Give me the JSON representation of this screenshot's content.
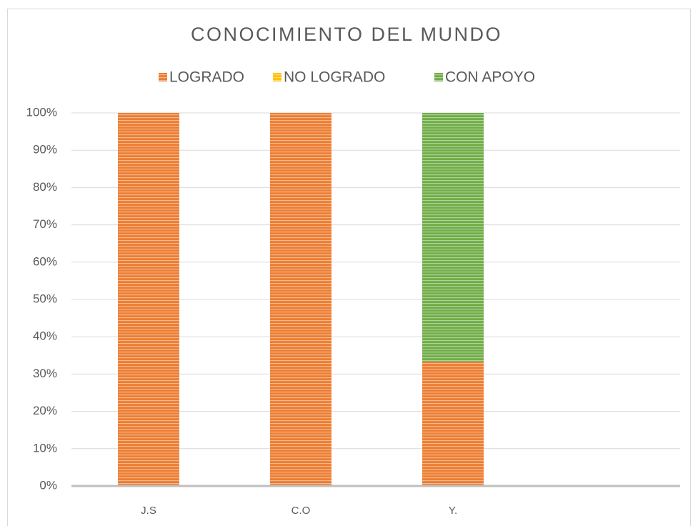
{
  "chart_data": {
    "type": "stacked_bar",
    "title": "CONOCIMIENTO DEL MUNDO",
    "categories": [
      "J.S",
      "C.O",
      "Y.",
      null
    ],
    "series": [
      {
        "name": "LOGRADO",
        "color": "#ed7d31",
        "values": [
          100,
          100,
          33.3,
          null
        ]
      },
      {
        "name": "NO LOGRADO",
        "color": "#ffc000",
        "values": [
          0,
          0,
          0,
          null
        ]
      },
      {
        "name": "CON APOYO",
        "color": "#70ad47",
        "values": [
          0,
          0,
          66.7,
          null
        ]
      }
    ],
    "ylim": [
      0,
      100
    ],
    "yticks": [
      {
        "value": 0,
        "label": "0%"
      },
      {
        "value": 10,
        "label": "10%"
      },
      {
        "value": 20,
        "label": "20%"
      },
      {
        "value": 30,
        "label": "30%"
      },
      {
        "value": 40,
        "label": "40%"
      },
      {
        "value": 50,
        "label": "50%"
      },
      {
        "value": 60,
        "label": "60%"
      },
      {
        "value": 70,
        "label": "70%"
      },
      {
        "value": 80,
        "label": "80%"
      },
      {
        "value": 90,
        "label": "90%"
      },
      {
        "value": 100,
        "label": "100%"
      }
    ],
    "grid": true,
    "legend": "top"
  }
}
